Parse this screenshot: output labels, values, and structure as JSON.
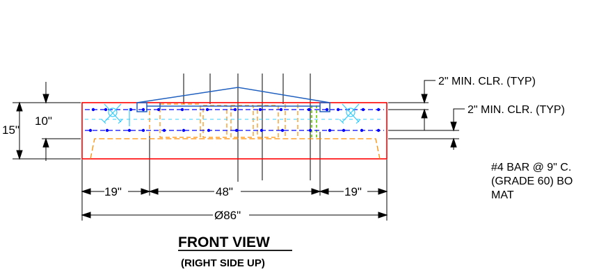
{
  "drawing": {
    "dimensions": {
      "left_depth": "15\"",
      "inner_depth": "10\"",
      "left_edge": "19\"",
      "center_span": "48\"",
      "right_edge": "19\"",
      "diameter": "Ø86\""
    },
    "notes": {
      "clear_top": "2\" MIN. CLR. (TYP)",
      "clear_side": "2\" MIN. CLR. (TYP)",
      "rebar_line1": "#4 BAR @ 9\" C.",
      "rebar_line2": "(GRADE 60) BO",
      "rebar_line3": "MAT"
    },
    "title": "FRONT VIEW",
    "subtitle": "(RIGHT SIDE UP)",
    "colors": {
      "slab_outline": "#ff0000",
      "top_rebar": "#0000ff",
      "bottom_outline": "#ff8c00",
      "anchor": "#33ccff",
      "plate": "#1f5fbf",
      "green_marker": "#66cc00",
      "lines": "#000000"
    }
  }
}
